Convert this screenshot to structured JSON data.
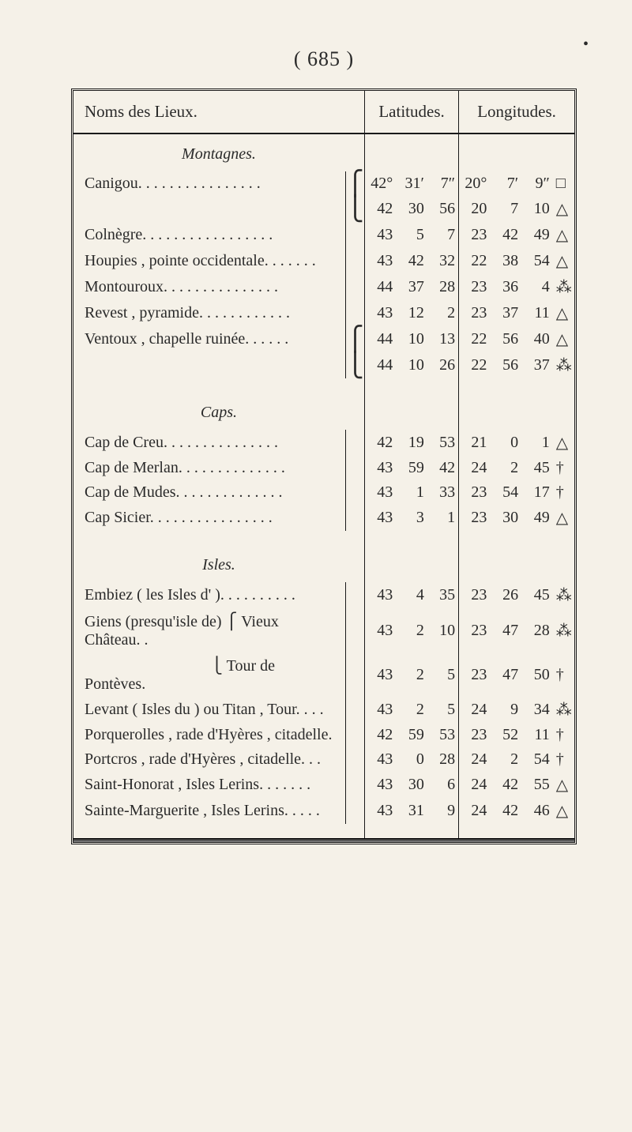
{
  "page_number": "( 685 )",
  "headers": {
    "name": "Noms des Lieux.",
    "lat": "Latitudes.",
    "lon": "Longitudes."
  },
  "sections": [
    {
      "title": "Montagnes.",
      "rows": [
        {
          "name": "Canigou. . . . . . . . . . . . . . . .",
          "brace": "⎧",
          "lat_d": "42°",
          "lat_m": "31′",
          "lat_s": "7″",
          "lon_d": "20°",
          "lon_m": "7′",
          "lon_s": "9″",
          "sym": "□"
        },
        {
          "name": "",
          "brace": "⎩",
          "lat_d": "42",
          "lat_m": "30",
          "lat_s": "56",
          "lon_d": "20",
          "lon_m": "7",
          "lon_s": "10",
          "sym": "△"
        },
        {
          "name": "Colnègre. . . . . . . . . . . . . . . . .",
          "lat_d": "43",
          "lat_m": "5",
          "lat_s": "7",
          "lon_d": "23",
          "lon_m": "42",
          "lon_s": "49",
          "sym": "△"
        },
        {
          "name": "Houpies , pointe occidentale. . . . . . .",
          "lat_d": "43",
          "lat_m": "42",
          "lat_s": "32",
          "lon_d": "22",
          "lon_m": "38",
          "lon_s": "54",
          "sym": "△"
        },
        {
          "name": "Montouroux. . . . . . . . . . . . . . .",
          "lat_d": "44",
          "lat_m": "37",
          "lat_s": "28",
          "lon_d": "23",
          "lon_m": "36",
          "lon_s": "4",
          "sym": "⁂"
        },
        {
          "name": "Revest , pyramide. . . . . . . . . . . .",
          "lat_d": "43",
          "lat_m": "12",
          "lat_s": "2",
          "lon_d": "23",
          "lon_m": "37",
          "lon_s": "11",
          "sym": "△"
        },
        {
          "name": "Ventoux , chapelle ruinée. . . . . .",
          "brace": "⎧",
          "lat_d": "44",
          "lat_m": "10",
          "lat_s": "13",
          "lon_d": "22",
          "lon_m": "56",
          "lon_s": "40",
          "sym": "△"
        },
        {
          "name": "",
          "brace": "⎩",
          "lat_d": "44",
          "lat_m": "10",
          "lat_s": "26",
          "lon_d": "22",
          "lon_m": "56",
          "lon_s": "37",
          "sym": "⁂"
        }
      ]
    },
    {
      "title": "Caps.",
      "rows": [
        {
          "name": "Cap de Creu. . . . . . . . . . . . . . .",
          "lat_d": "42",
          "lat_m": "19",
          "lat_s": "53",
          "lon_d": "21",
          "lon_m": "0",
          "lon_s": "1",
          "sym": "△"
        },
        {
          "name": "Cap de Merlan. . . . . . . . . . . . . .",
          "lat_d": "43",
          "lat_m": "59",
          "lat_s": "42",
          "lon_d": "24",
          "lon_m": "2",
          "lon_s": "45",
          "sym": "†"
        },
        {
          "name": "Cap de Mudes. . . . . . . . . . . . . .",
          "lat_d": "43",
          "lat_m": "1",
          "lat_s": "33",
          "lon_d": "23",
          "lon_m": "54",
          "lon_s": "17",
          "sym": "†"
        },
        {
          "name": "Cap Sicier. . . . . . . . . . . . . . . .",
          "lat_d": "43",
          "lat_m": "3",
          "lat_s": "1",
          "lon_d": "23",
          "lon_m": "30",
          "lon_s": "49",
          "sym": "△"
        }
      ]
    },
    {
      "title": "Isles.",
      "rows": [
        {
          "name": "Embiez ( les Isles d' ). . . . . . . . . .",
          "lat_d": "43",
          "lat_m": "4",
          "lat_s": "35",
          "lon_d": "23",
          "lon_m": "26",
          "lon_s": "45",
          "sym": "⁂"
        },
        {
          "name": "Giens (presqu'isle de) ⎧ Vieux Château. .",
          "lat_d": "43",
          "lat_m": "2",
          "lat_s": "10",
          "lon_d": "23",
          "lon_m": "47",
          "lon_s": "28",
          "sym": "⁂"
        },
        {
          "name": "                                ⎩ Tour de Pontèves.",
          "lat_d": "43",
          "lat_m": "2",
          "lat_s": "5",
          "lon_d": "23",
          "lon_m": "47",
          "lon_s": "50",
          "sym": "†"
        },
        {
          "name": "Levant ( Isles du ) ou Titan , Tour. . . .",
          "lat_d": "43",
          "lat_m": "2",
          "lat_s": "5",
          "lon_d": "24",
          "lon_m": "9",
          "lon_s": "34",
          "sym": "⁂"
        },
        {
          "name": "Porquerolles , rade d'Hyères , citadelle.",
          "lat_d": "42",
          "lat_m": "59",
          "lat_s": "53",
          "lon_d": "23",
          "lon_m": "52",
          "lon_s": "11",
          "sym": "†"
        },
        {
          "name": "Portcros , rade d'Hyères , citadelle. . .",
          "lat_d": "43",
          "lat_m": "0",
          "lat_s": "28",
          "lon_d": "24",
          "lon_m": "2",
          "lon_s": "54",
          "sym": "†"
        },
        {
          "name": "Saint-Honorat , Isles Lerins. . . . . . .",
          "lat_d": "43",
          "lat_m": "30",
          "lat_s": "6",
          "lon_d": "24",
          "lon_m": "42",
          "lon_s": "55",
          "sym": "△"
        },
        {
          "name": "Sainte-Marguerite , Isles Lerins. . . . .",
          "lat_d": "43",
          "lat_m": "31",
          "lat_s": "9",
          "lon_d": "24",
          "lon_m": "42",
          "lon_s": "46",
          "sym": "△"
        }
      ]
    }
  ]
}
